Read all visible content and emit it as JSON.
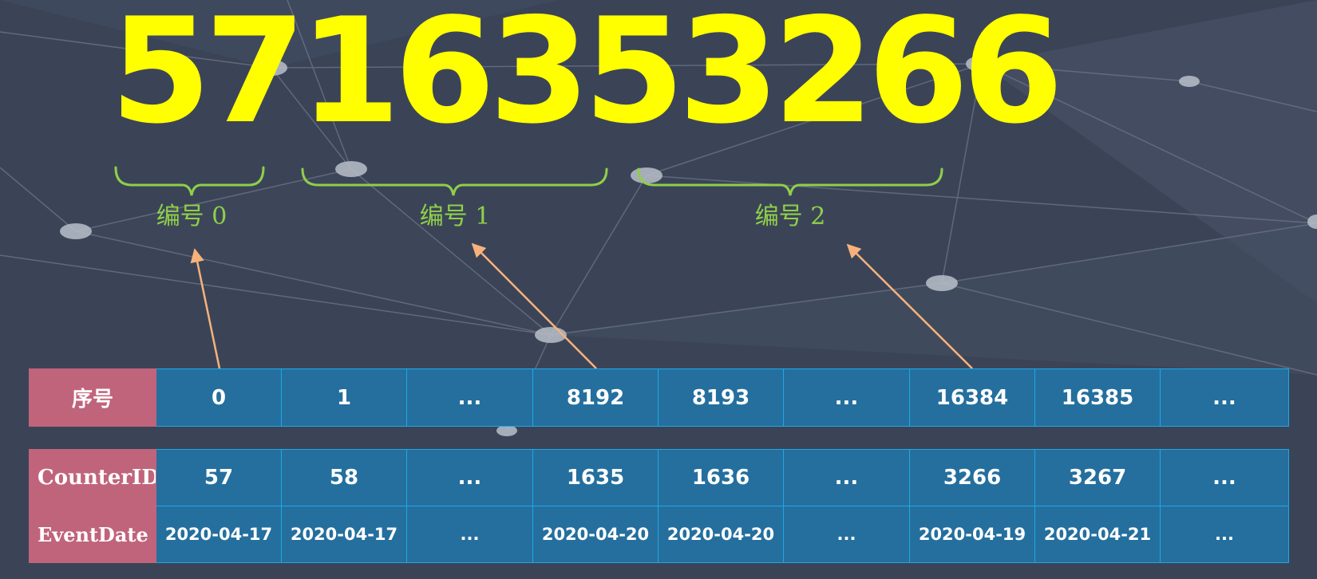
{
  "title_number": "5716353266",
  "colors": {
    "background": "#3b4457",
    "number": "#ffff00",
    "brace": "#8fcf4a",
    "arrow": "#f7b27c",
    "cell": "#246f9e",
    "cell_border": "#1ea8e6",
    "header_cell": "#c0647c"
  },
  "groups": [
    {
      "label": "编号 0"
    },
    {
      "label": "编号 1"
    },
    {
      "label": "编号 2"
    }
  ],
  "index_table": {
    "header": "序号",
    "values": [
      "0",
      "1",
      "...",
      "8192",
      "8193",
      "...",
      "16384",
      "16385",
      "..."
    ]
  },
  "data_table": {
    "rows": [
      {
        "header": "CounterID",
        "values": [
          "57",
          "58",
          "...",
          "1635",
          "1636",
          "...",
          "3266",
          "3267",
          "..."
        ]
      },
      {
        "header": "EventDate",
        "values": [
          "2020-04-17",
          "2020-04-17",
          "...",
          "2020-04-20",
          "2020-04-20",
          "...",
          "2020-04-19",
          "2020-04-21",
          "..."
        ]
      }
    ]
  }
}
